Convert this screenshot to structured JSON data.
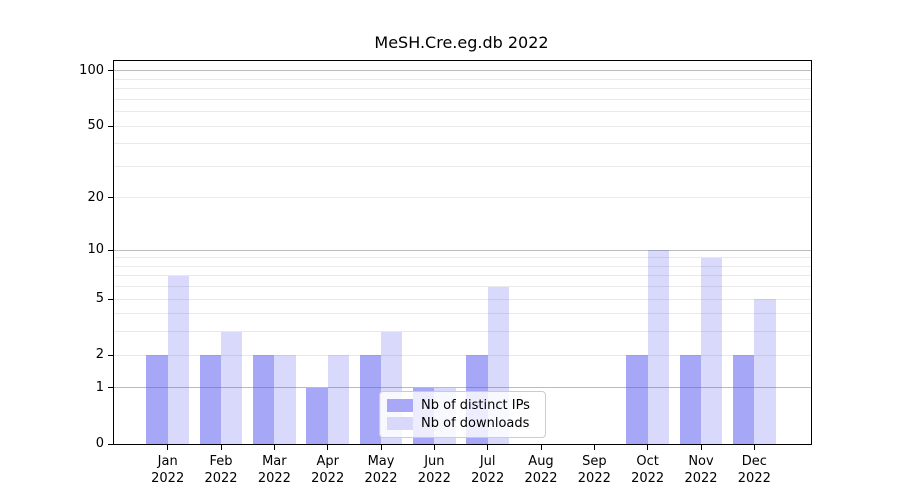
{
  "chart_data": {
    "type": "bar",
    "title": "MeSH.Cre.eg.db 2022",
    "year_label": "2022",
    "categories": [
      "Jan",
      "Feb",
      "Mar",
      "Apr",
      "May",
      "Jun",
      "Jul",
      "Aug",
      "Sep",
      "Oct",
      "Nov",
      "Dec"
    ],
    "series": [
      {
        "key": "distinct-ips",
        "name": "Nb of distinct IPs",
        "fill": "rgba(80,80,240,0.5)",
        "legend_color": "#a8a8f7",
        "values": [
          2,
          2,
          2,
          1,
          2,
          1,
          2,
          0,
          0,
          2,
          2,
          2
        ]
      },
      {
        "key": "downloads",
        "name": "Nb of downloads",
        "fill": "rgba(80,80,240,0.22)",
        "legend_color": "#d8d8fa",
        "values": [
          7,
          3,
          2,
          2,
          3,
          1,
          6,
          0,
          0,
          10,
          9,
          5
        ]
      }
    ],
    "y_scale": "log1p",
    "y_ticks": [
      0,
      1,
      2,
      5,
      10,
      20,
      50,
      100
    ],
    "y_major_gridlines": [
      1,
      10,
      100
    ],
    "y_minor_gridlines": [
      2,
      3,
      4,
      5,
      6,
      7,
      8,
      9,
      20,
      30,
      40,
      50,
      60,
      70,
      80,
      90
    ],
    "ylim": [
      0,
      113
    ],
    "grid": true,
    "legend_position": "inside-lower-center",
    "colors": {
      "axis": "#000000",
      "grid_major": "#bcbcbc",
      "grid_minor": "#e9e9e9",
      "legend_border": "#cccccc"
    }
  }
}
